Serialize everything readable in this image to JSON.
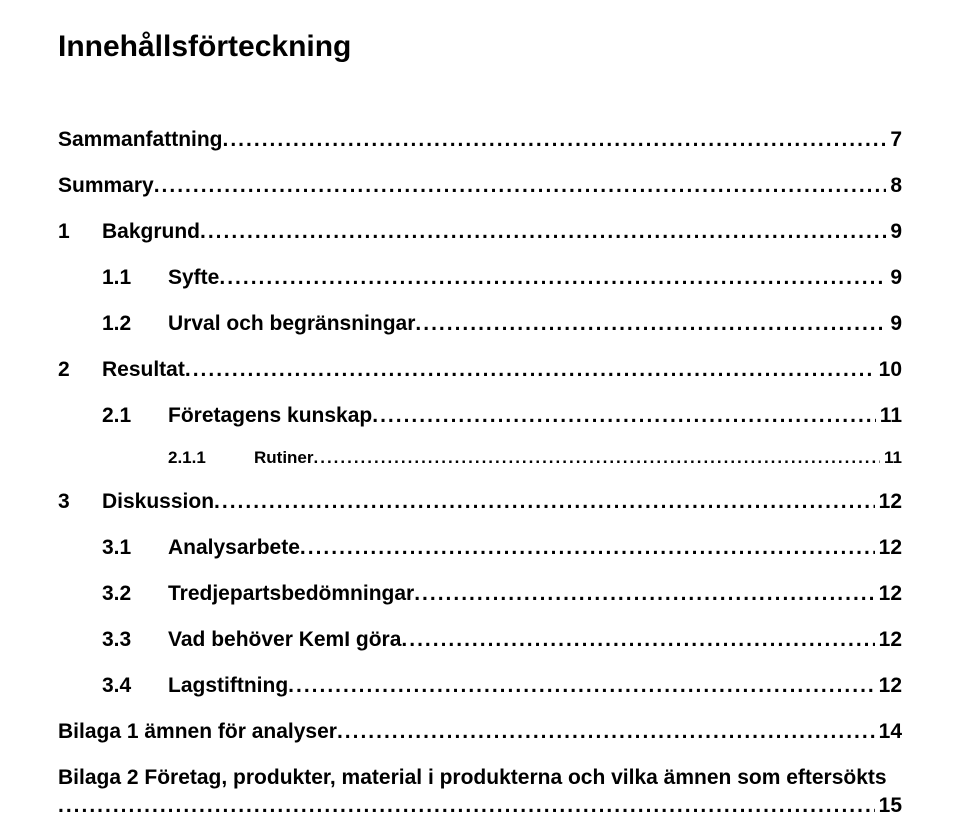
{
  "document": {
    "title": "Innehållsförteckning",
    "background_color": "#ffffff",
    "text_color": "#000000",
    "title_fontsize": 30,
    "level1_fontsize": 21,
    "level2_fontsize": 21,
    "level3_fontsize": 17,
    "dot_letter_spacing": 2
  },
  "toc": {
    "entries": [
      {
        "level": 1,
        "num": "",
        "label": "Sammanfattning",
        "page": "7"
      },
      {
        "level": 1,
        "num": "",
        "label": "Summary",
        "page": "8"
      },
      {
        "level": 1,
        "num": "1",
        "label": "Bakgrund",
        "page": "9"
      },
      {
        "level": 2,
        "num": "1.1",
        "label": "Syfte",
        "page": "9"
      },
      {
        "level": 2,
        "num": "1.2",
        "label": "Urval och begränsningar",
        "page": "9"
      },
      {
        "level": 1,
        "num": "2",
        "label": "Resultat",
        "page": "10"
      },
      {
        "level": 2,
        "num": "2.1",
        "label": "Företagens kunskap",
        "page": "11"
      },
      {
        "level": 3,
        "num": "2.1.1",
        "label": "Rutiner",
        "page": "11"
      },
      {
        "level": 1,
        "num": "3",
        "label": "Diskussion",
        "page": "12"
      },
      {
        "level": 2,
        "num": "3.1",
        "label": "Analysarbete",
        "page": "12"
      },
      {
        "level": 2,
        "num": "3.2",
        "label": "Tredjepartsbedömningar",
        "page": "12"
      },
      {
        "level": 2,
        "num": "3.3",
        "label": "Vad behöver KemI göra",
        "page": "12"
      },
      {
        "level": 2,
        "num": "3.4",
        "label": "Lagstiftning",
        "page": "12"
      },
      {
        "level": 1,
        "num": "",
        "label": "Bilaga 1 ämnen för analyser",
        "page": "14"
      }
    ],
    "wrapped_entry": {
      "line1": "Bilaga 2 Företag, produkter, material i produkterna och vilka ämnen som eftersökts",
      "page": "15"
    }
  }
}
